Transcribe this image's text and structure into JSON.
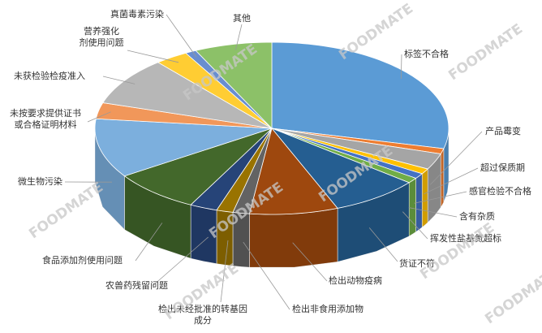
{
  "chart_data": {
    "type": "pie3d",
    "watermark": "FOODMATE",
    "categories": [
      "标签不合格",
      "产品霉变",
      "超过保质期",
      "感官检验不合格",
      "含有杂质",
      "挥发性盐基氮超标",
      "货证不符",
      "检出动物疫病",
      "检出非食用添加物",
      "检出未经批准的转基因成分",
      "农兽药残留问题",
      "食品添加剂使用问题",
      "微生物污染",
      "未按要求提供证书或合格证明材料",
      "未获检验检疫准入",
      "营养强化剂使用问题",
      "真菌毒素污染",
      "其他"
    ],
    "values": [
      28.5,
      1,
      3,
      1,
      1,
      1,
      8,
      8,
      1.5,
      1.5,
      2.5,
      8,
      11,
      3,
      9,
      3,
      1,
      7
    ],
    "colors": [
      "#5b9bd5",
      "#ed7d31",
      "#a5a5a5",
      "#ffc000",
      "#4472c4",
      "#70ad47",
      "#255e91",
      "#9e480e",
      "#636363",
      "#997300",
      "#264478",
      "#43682b",
      "#7cafdd",
      "#f1975a",
      "#b7b7b7",
      "#ffcd33",
      "#698ed0",
      "#8cc168"
    ]
  }
}
